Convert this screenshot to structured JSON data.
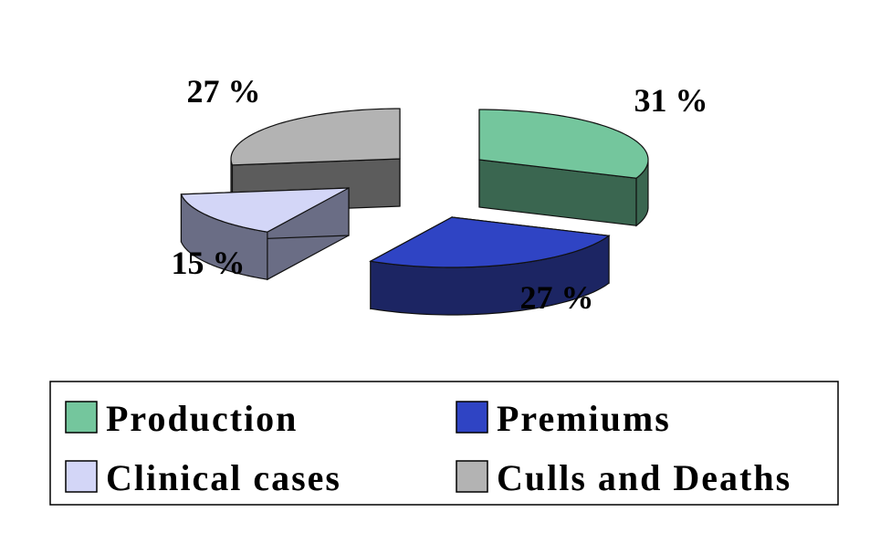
{
  "chart_data": {
    "type": "pie",
    "style": "exploded 3d pie",
    "title": "",
    "categories": [
      "Production",
      "Premiums",
      "Clinical cases",
      "Culls and Deaths"
    ],
    "values": [
      31,
      27,
      15,
      27
    ],
    "value_labels": [
      "31 %",
      "27 %",
      "15 %",
      "27 %"
    ],
    "unit": "%",
    "colors": [
      "#74c69d",
      "#2f44c4",
      "#d3d6f7",
      "#b3b3b3"
    ],
    "side_colors": [
      "#3a6650",
      "#1c2563",
      "#6a6d85",
      "#5c5c5c"
    ],
    "legend": {
      "position": "bottom",
      "entries": [
        "Production",
        "Premiums",
        "Clinical cases",
        "Culls and Deaths"
      ]
    }
  }
}
